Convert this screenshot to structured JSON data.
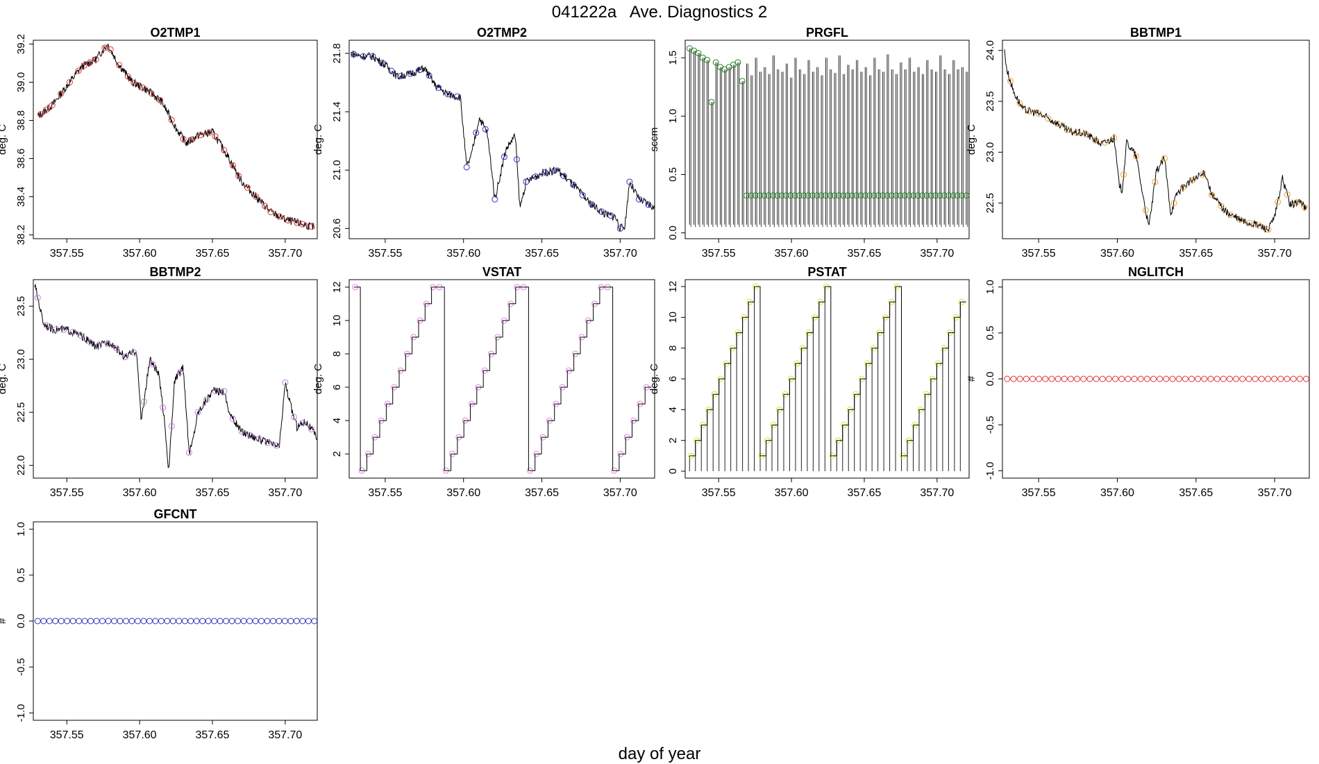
{
  "figure": {
    "title": "041222a   Ave. Diagnostics 2",
    "xlabel": "day of year",
    "xticks": [
      "357.55",
      "357.60",
      "357.65",
      "357.70"
    ]
  },
  "chart_data": [
    {
      "type": "line",
      "title": "O2TMP1",
      "ylabel": "deg. C",
      "xlim": [
        357.527,
        357.722
      ],
      "ylim": [
        38.18,
        39.22
      ],
      "yticks": [
        "38.2",
        "38.4",
        "38.6",
        "38.8",
        "39.0",
        "39.2"
      ],
      "marker_color": "#e03030",
      "x": [
        357.53,
        357.54,
        357.55,
        357.56,
        357.57,
        357.578,
        357.585,
        357.595,
        357.605,
        357.615,
        357.625,
        357.632,
        357.64,
        357.65,
        357.66,
        357.67,
        357.68,
        357.69,
        357.7,
        357.71,
        357.72
      ],
      "values": [
        38.82,
        38.88,
        38.98,
        39.08,
        39.12,
        39.2,
        39.1,
        39.0,
        38.96,
        38.9,
        38.76,
        38.68,
        38.72,
        38.74,
        38.62,
        38.48,
        38.4,
        38.32,
        38.28,
        38.26,
        38.24
      ],
      "markers": [
        357.532,
        357.536,
        357.54,
        357.546,
        357.552,
        357.558,
        357.562,
        357.566,
        357.57,
        357.576,
        357.58,
        357.586,
        357.592,
        357.596,
        357.602,
        357.608,
        357.614,
        357.622,
        357.63,
        357.636,
        357.642,
        357.648,
        357.652,
        357.658,
        357.664,
        357.668,
        357.674,
        357.68,
        357.686,
        357.69,
        357.696,
        357.702,
        357.708,
        357.712,
        357.718
      ]
    },
    {
      "type": "line",
      "title": "O2TMP2",
      "ylabel": "deg. C",
      "xlim": [
        357.527,
        357.722
      ],
      "ylim": [
        20.53,
        21.89
      ],
      "yticks": [
        "20.6",
        "21.0",
        "21.4",
        "21.8"
      ],
      "marker_color": "#3030c0",
      "x": [
        357.528,
        357.535,
        357.542,
        357.55,
        357.558,
        357.566,
        357.575,
        357.582,
        357.59,
        357.598,
        357.602,
        357.605,
        357.61,
        357.615,
        357.618,
        357.62,
        357.627,
        357.633,
        357.636,
        357.64,
        357.65,
        357.66,
        357.67,
        357.68,
        357.69,
        357.697,
        357.7,
        357.703,
        357.706,
        357.712,
        357.722
      ],
      "values": [
        21.8,
        21.78,
        21.78,
        21.72,
        21.64,
        21.66,
        21.7,
        21.58,
        21.52,
        21.5,
        21.02,
        21.1,
        21.36,
        21.26,
        21.0,
        20.8,
        21.14,
        21.24,
        20.74,
        20.92,
        20.98,
        21.0,
        20.9,
        20.78,
        20.7,
        20.68,
        20.6,
        20.62,
        20.92,
        20.8,
        20.74
      ],
      "markers": [
        357.53,
        357.536,
        357.542,
        357.548,
        357.554,
        357.56,
        357.566,
        357.572,
        357.578,
        357.584,
        357.59,
        357.596,
        357.602,
        357.608,
        357.614,
        357.62,
        357.626,
        357.634,
        357.64,
        357.646,
        357.652,
        357.658,
        357.664,
        357.67,
        357.676,
        357.682,
        357.688,
        357.694,
        357.7,
        357.706,
        357.712,
        357.718
      ]
    },
    {
      "type": "spike",
      "title": "PRGFL",
      "ylabel": "sccm",
      "xlim": [
        357.527,
        357.722
      ],
      "ylim": [
        -0.05,
        1.65
      ],
      "yticks": [
        "0.0",
        "0.5",
        "1.0",
        "1.5"
      ],
      "marker_color": "#208020",
      "x_start": 357.53,
      "x_end": 357.72,
      "spike_count": 64,
      "baseline": 0.07,
      "plateau": 0.32,
      "peaks_early": [
        1.58,
        1.56,
        1.54,
        1.5,
        1.48,
        1.12,
        1.46,
        1.42,
        1.4,
        1.42,
        1.44,
        1.46,
        1.3
      ],
      "peaks_late": [
        1.45,
        1.35,
        1.5,
        1.38,
        1.42,
        1.36,
        1.52,
        1.4,
        1.38,
        1.45,
        1.33,
        1.5,
        1.4,
        1.36,
        1.48,
        1.38,
        1.42,
        1.35,
        1.5,
        1.4,
        1.37,
        1.52,
        1.36,
        1.44,
        1.4,
        1.48,
        1.38,
        1.42,
        1.35,
        1.5,
        1.4,
        1.38,
        1.53,
        1.4,
        1.36,
        1.46,
        1.4,
        1.5,
        1.38,
        1.42,
        1.36,
        1.48,
        1.4,
        1.38,
        1.52,
        1.4,
        1.36,
        1.48,
        1.4,
        1.42,
        1.38
      ]
    },
    {
      "type": "line",
      "title": "BBTMP1",
      "ylabel": "deg. C",
      "xlim": [
        357.527,
        357.722
      ],
      "ylim": [
        22.15,
        24.1
      ],
      "yticks": [
        "22.5",
        "23.0",
        "23.5",
        "24.0"
      ],
      "marker_color": "#f0a030",
      "x": [
        357.528,
        357.53,
        357.534,
        357.54,
        357.55,
        357.56,
        357.57,
        357.58,
        357.59,
        357.598,
        357.601,
        357.603,
        357.606,
        357.612,
        357.616,
        357.62,
        357.625,
        357.63,
        357.634,
        357.638,
        357.645,
        357.652,
        357.656,
        357.66,
        357.67,
        357.68,
        357.69,
        357.696,
        357.7,
        357.705,
        357.71,
        357.716,
        357.72
      ],
      "values": [
        24.02,
        23.8,
        23.6,
        23.42,
        23.38,
        23.3,
        23.2,
        23.18,
        23.08,
        23.14,
        22.7,
        22.62,
        23.1,
        22.96,
        22.6,
        22.26,
        22.82,
        22.94,
        22.4,
        22.6,
        22.7,
        22.76,
        22.8,
        22.58,
        22.4,
        22.32,
        22.28,
        22.24,
        22.36,
        22.74,
        22.48,
        22.52,
        22.44
      ],
      "markers": [
        357.532,
        357.538,
        357.544,
        357.55,
        357.556,
        357.562,
        357.568,
        357.574,
        357.58,
        357.586,
        357.592,
        357.598,
        357.604,
        357.612,
        357.618,
        357.624,
        357.63,
        357.636,
        357.642,
        357.648,
        357.654,
        357.66,
        357.666,
        357.672,
        357.678,
        357.684,
        357.69,
        357.696,
        357.702,
        357.708,
        357.714,
        357.719
      ]
    },
    {
      "type": "line",
      "title": "BBTMP2",
      "ylabel": "deg. C",
      "xlim": [
        357.527,
        357.722
      ],
      "ylim": [
        21.88,
        23.75
      ],
      "yticks": [
        "22.0",
        "22.5",
        "23.0",
        "23.5"
      ],
      "marker_color": "#c080e0",
      "x": [
        357.528,
        357.53,
        357.534,
        357.54,
        357.55,
        357.56,
        357.57,
        357.58,
        357.59,
        357.598,
        357.601,
        357.603,
        357.607,
        357.613,
        357.617,
        357.62,
        357.624,
        357.63,
        357.634,
        357.636,
        357.64,
        357.65,
        357.658,
        357.662,
        357.67,
        357.68,
        357.69,
        357.696,
        357.7,
        357.703,
        357.708,
        357.714,
        357.722
      ],
      "values": [
        23.7,
        23.58,
        23.34,
        23.28,
        23.28,
        23.22,
        23.12,
        23.16,
        23.02,
        23.08,
        22.42,
        22.6,
        23.0,
        22.86,
        22.44,
        21.94,
        22.8,
        22.92,
        22.12,
        22.2,
        22.5,
        22.7,
        22.7,
        22.48,
        22.32,
        22.26,
        22.2,
        22.18,
        22.78,
        22.6,
        22.36,
        22.42,
        22.26
      ],
      "markers": [
        357.53,
        357.536,
        357.542,
        357.548,
        357.554,
        357.56,
        357.566,
        357.572,
        357.578,
        357.584,
        357.59,
        357.596,
        357.603,
        357.609,
        357.616,
        357.622,
        357.628,
        357.634,
        357.64,
        357.646,
        357.652,
        357.658,
        357.664,
        357.67,
        357.676,
        357.682,
        357.688,
        357.694,
        357.7,
        357.706,
        357.712,
        357.718
      ]
    },
    {
      "type": "step",
      "title": "VSTAT",
      "ylabel": "deg. C",
      "xlim": [
        357.527,
        357.722
      ],
      "ylim": [
        0.55,
        12.45
      ],
      "yticks": [
        "2",
        "4",
        "6",
        "8",
        "10",
        "12"
      ],
      "marker_color": "#e080e0",
      "x_start": 357.53,
      "x_end": 357.72,
      "steps": 46,
      "sequence": [
        12,
        1,
        2,
        3,
        4,
        5,
        6,
        7,
        8,
        9,
        10,
        11,
        12
      ]
    },
    {
      "type": "stepspike",
      "title": "PSTAT",
      "ylabel": "deg. C",
      "xlim": [
        357.527,
        357.722
      ],
      "ylim": [
        -0.45,
        12.45
      ],
      "yticks": [
        "0",
        "2",
        "4",
        "6",
        "8",
        "10",
        "12"
      ],
      "marker_color": "#e0e020",
      "x_start": 357.53,
      "x_end": 357.72,
      "steps": 47,
      "sequence": [
        1,
        2,
        3,
        4,
        5,
        6,
        7,
        8,
        9,
        10,
        11,
        12
      ]
    },
    {
      "type": "scatter",
      "title": "NGLITCH",
      "ylabel": "#",
      "xlim": [
        357.527,
        357.722
      ],
      "ylim": [
        -1.08,
        1.08
      ],
      "yticks": [
        "-1.0",
        "-0.5",
        "0.0",
        "0.5",
        "1.0"
      ],
      "marker_color": "#e03030",
      "x_start": 357.53,
      "x_end": 357.72,
      "count": 48,
      "value": 0
    },
    {
      "type": "scatter",
      "title": "GFCNT",
      "ylabel": "#",
      "xlim": [
        357.527,
        357.722
      ],
      "ylim": [
        -1.08,
        1.08
      ],
      "yticks": [
        "-1.0",
        "-0.5",
        "0.0",
        "0.5",
        "1.0"
      ],
      "marker_color": "#3030c0",
      "x_start": 357.53,
      "x_end": 357.72,
      "count": 48,
      "value": 0
    }
  ]
}
